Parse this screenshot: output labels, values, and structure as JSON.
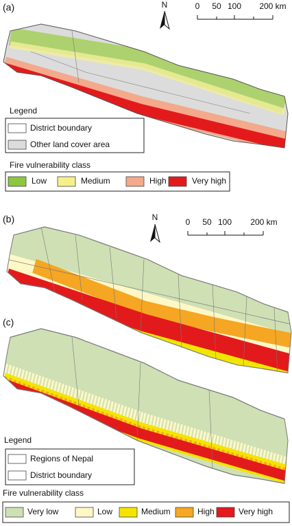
{
  "panels": [
    {
      "label": "(a)",
      "north": "N",
      "scale": [
        "0",
        "50",
        "100",
        "200 km"
      ],
      "legend_title": "Legend",
      "legend": [
        "District boundary",
        "Other land cover area"
      ],
      "class_title": "Fire vulnerability class",
      "classes": [
        "Low",
        "Medium",
        "High",
        "Very high"
      ]
    },
    {
      "label": "(b)",
      "north": "N",
      "scale": [
        "0",
        "50",
        "100",
        "200 km"
      ]
    },
    {
      "label": "(c)",
      "legend_title": "Legend",
      "legend": [
        "Regions of Nepal",
        "District boundary"
      ],
      "class_title": "Fire vulnerability class",
      "classes": [
        "Very low",
        "Low",
        "Medium",
        "High",
        "Very high"
      ]
    }
  ]
}
